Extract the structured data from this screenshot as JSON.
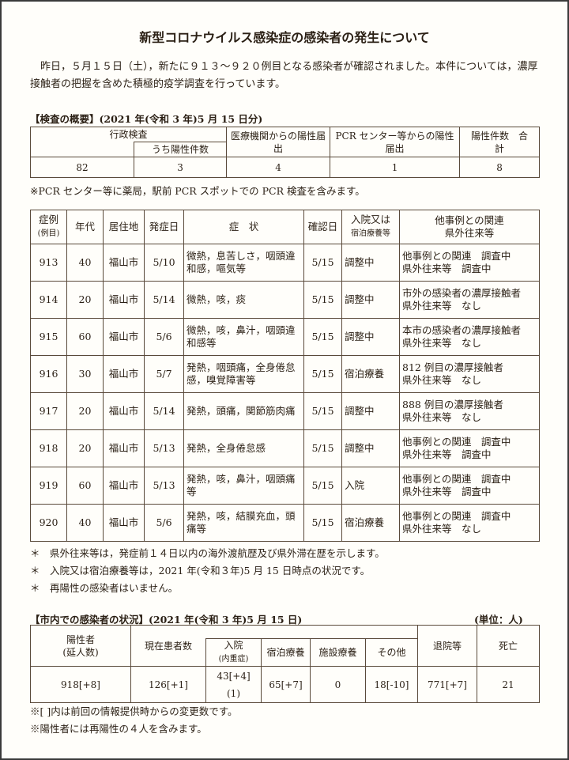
{
  "title": "新型コロナウイルス感染症の感染者の発生について",
  "intro": "昨日，５月１５日（土），新たに９１３～９２０例目となる感染者が確認されました。本件については，濃厚接触者の把握を含めた積極的疫学調査を行っています。",
  "tests": {
    "heading": "【検査の概要】(2021 年(令和 3 年)5 月 15 日分)",
    "headers": {
      "admin": "行政検査",
      "admin_pos": "うち陽性件数",
      "medical": "医療機関からの陽性届出",
      "pcr": "PCR センター等からの陽性届出",
      "total": "陽性件数　合　　計"
    },
    "values": {
      "admin": "82",
      "admin_pos": "3",
      "medical": "4",
      "pcr": "1",
      "total": "8"
    },
    "note": "※PCR センター等に薬局，駅前 PCR スポットでの PCR 検査を含みます。"
  },
  "cases": {
    "headers": [
      "症例",
      "(例目)",
      "年代",
      "居住地",
      "発症日",
      "症　状",
      "確認日",
      "入院又は",
      "宿泊療養等",
      "他事例との関連",
      "県外往来等"
    ],
    "rows": [
      {
        "no": "913",
        "age": "40",
        "city": "福山市",
        "onset": "5/10",
        "sym": "微熱，息苦しさ，咽頭違和感，嘔気等",
        "conf": "5/15",
        "status": "調整中",
        "rel1": "他事例との関連　調査中",
        "rel2": "県外往来等　調査中"
      },
      {
        "no": "914",
        "age": "20",
        "city": "福山市",
        "onset": "5/14",
        "sym": "微熱，咳，痰",
        "conf": "5/15",
        "status": "調整中",
        "rel1": "市外の感染者の濃厚接触者",
        "rel2": "県外往来等　なし"
      },
      {
        "no": "915",
        "age": "60",
        "city": "福山市",
        "onset": "5/6",
        "sym": "微熱，咳，鼻汁，咽頭違和感等",
        "conf": "5/15",
        "status": "調整中",
        "rel1": "本市の感染者の濃厚接触者",
        "rel2": "県外往来等　なし"
      },
      {
        "no": "916",
        "age": "30",
        "city": "福山市",
        "onset": "5/7",
        "sym": "発熱，咽頭痛，全身倦怠感，嗅覚障害等",
        "conf": "5/15",
        "status": "宿泊療養",
        "rel1": "812 例目の濃厚接触者",
        "rel2": "県外往来等　なし"
      },
      {
        "no": "917",
        "age": "20",
        "city": "福山市",
        "onset": "5/14",
        "sym": "発熱，頭痛，関節筋肉痛",
        "conf": "5/15",
        "status": "調整中",
        "rel1": "888 例目の濃厚接触者",
        "rel2": "県外往来等　なし"
      },
      {
        "no": "918",
        "age": "20",
        "city": "福山市",
        "onset": "5/13",
        "sym": "発熱，全身倦怠感",
        "conf": "5/15",
        "status": "調整中",
        "rel1": "他事例との関連　調査中",
        "rel2": "県外往来等　調査中"
      },
      {
        "no": "919",
        "age": "60",
        "city": "福山市",
        "onset": "5/13",
        "sym": "発熱，咳，鼻汁，咽頭痛等",
        "conf": "5/15",
        "status": "入院",
        "rel1": "他事例との関連　調査中",
        "rel2": "県外往来等　調査中"
      },
      {
        "no": "920",
        "age": "40",
        "city": "福山市",
        "onset": "5/6",
        "sym": "発熱，咳，結膜充血，頭痛等",
        "conf": "5/15",
        "status": "宿泊療養",
        "rel1": "他事例との関連　調査中",
        "rel2": "県外往来等　なし"
      }
    ],
    "notes": [
      "＊　県外往来等は，発症前１４日以内の海外渡航歴及び県外滞在歴を示します。",
      "＊　入院又は宿泊療養等は，2021 年(令和３年)5 月 15 日時点の状況です。",
      "＊　再陽性の感染者はいません。"
    ]
  },
  "status": {
    "heading": "【市内での感染者の状況】(2021 年(令和 3 年)5 月 15 日)",
    "unit": "(単位：人)",
    "headers": {
      "positive1": "陽性者",
      "positive2": "(延人数)",
      "current": "現在患者数",
      "hosp": "入院",
      "hosp_sub": "(内重症)",
      "hotel": "宿泊療養",
      "facility": "施設療養",
      "other": "その他",
      "discharged": "退院等",
      "death": "死亡"
    },
    "values": {
      "positive": "918[+8]",
      "current": "126[+1]",
      "hosp": "43[+4]",
      "hosp_severe": "(1)",
      "hotel": "65[+7]",
      "facility": "0",
      "other": "18[-10]",
      "discharged": "771[+7]",
      "death": "21"
    },
    "notes": [
      "※[ ]内は前回の情報提供時からの変更数です。",
      "※陽性者には再陽性の４人を含みます。"
    ]
  }
}
